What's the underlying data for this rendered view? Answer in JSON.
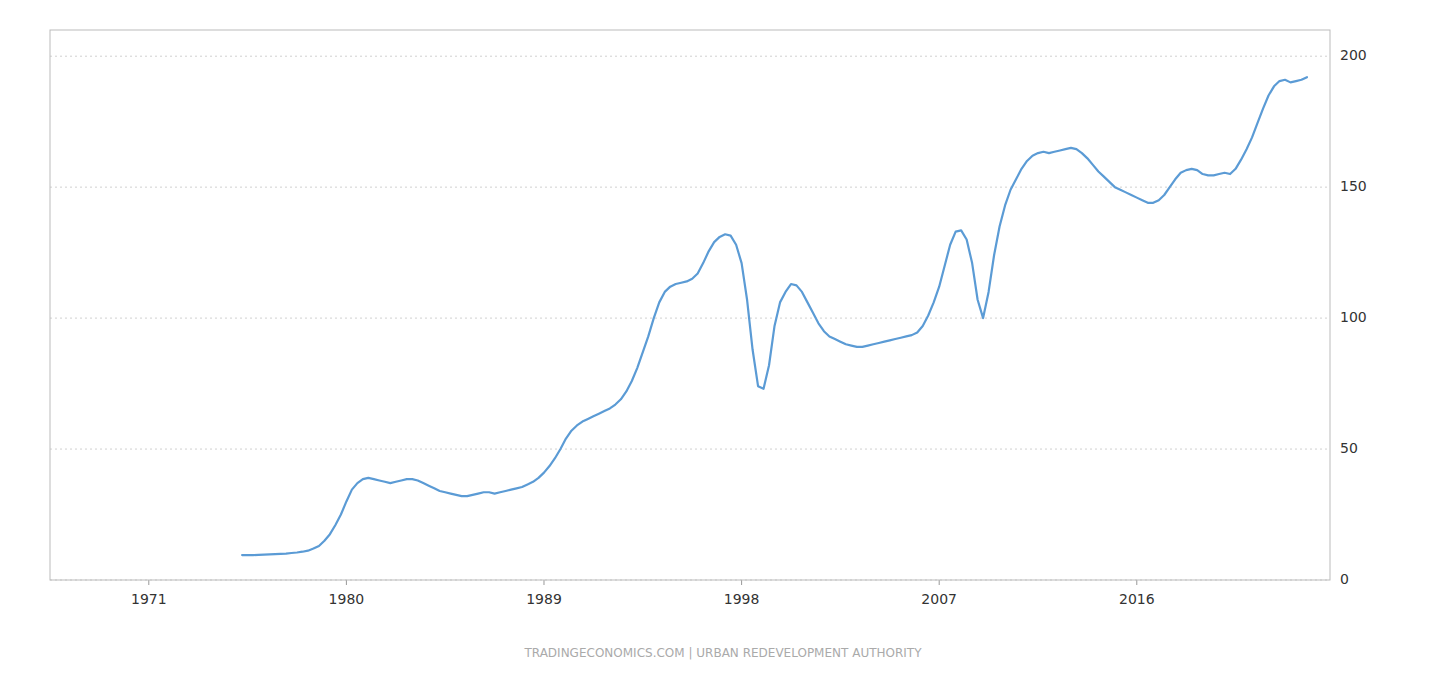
{
  "chart_data": {
    "type": "line",
    "color": "#5b9bd5",
    "grid": true,
    "annotations": [
      "TRADINGECONOMICS.COM | URBAN REDEVELOPMENT AUTHORITY"
    ],
    "xlim": [
      1966.5,
      2024.8
    ],
    "xticks": [
      1971,
      1980,
      1989,
      1998,
      2007,
      2016
    ],
    "ylim": [
      0,
      210
    ],
    "yticks": [
      0,
      50,
      100,
      150,
      200
    ],
    "x": [
      1975.25,
      1975.5,
      1975.75,
      1976.0,
      1976.25,
      1976.5,
      1976.75,
      1977.0,
      1977.25,
      1977.5,
      1977.75,
      1978.0,
      1978.25,
      1978.5,
      1978.75,
      1979.0,
      1979.25,
      1979.5,
      1979.75,
      1980.0,
      1980.25,
      1980.5,
      1980.75,
      1981.0,
      1981.25,
      1981.5,
      1981.75,
      1982.0,
      1982.25,
      1982.5,
      1982.75,
      1983.0,
      1983.25,
      1983.5,
      1983.75,
      1984.0,
      1984.25,
      1984.5,
      1984.75,
      1985.0,
      1985.25,
      1985.5,
      1985.75,
      1986.0,
      1986.25,
      1986.5,
      1986.75,
      1987.0,
      1987.25,
      1987.5,
      1987.75,
      1988.0,
      1988.25,
      1988.5,
      1988.75,
      1989.0,
      1989.25,
      1989.5,
      1989.75,
      1990.0,
      1990.25,
      1990.5,
      1990.75,
      1991.0,
      1991.25,
      1991.5,
      1991.75,
      1992.0,
      1992.25,
      1992.5,
      1992.75,
      1993.0,
      1993.25,
      1993.5,
      1993.75,
      1994.0,
      1994.25,
      1994.5,
      1994.75,
      1995.0,
      1995.25,
      1995.5,
      1995.75,
      1996.0,
      1996.25,
      1996.5,
      1996.75,
      1997.0,
      1997.25,
      1997.5,
      1997.75,
      1998.0,
      1998.25,
      1998.5,
      1998.75,
      1999.0,
      1999.25,
      1999.5,
      1999.75,
      2000.0,
      2000.25,
      2000.5,
      2000.75,
      2001.0,
      2001.25,
      2001.5,
      2001.75,
      2002.0,
      2002.25,
      2002.5,
      2002.75,
      2003.0,
      2003.25,
      2003.5,
      2003.75,
      2004.0,
      2004.25,
      2004.5,
      2004.75,
      2005.0,
      2005.25,
      2005.5,
      2005.75,
      2006.0,
      2006.25,
      2006.5,
      2006.75,
      2007.0,
      2007.25,
      2007.5,
      2007.75,
      2008.0,
      2008.25,
      2008.5,
      2008.75,
      2009.0,
      2009.25,
      2009.5,
      2009.75,
      2010.0,
      2010.25,
      2010.5,
      2010.75,
      2011.0,
      2011.25,
      2011.5,
      2011.75,
      2012.0,
      2012.25,
      2012.5,
      2012.75,
      2013.0,
      2013.25,
      2013.5,
      2013.75,
      2014.0,
      2014.25,
      2014.5,
      2014.75,
      2015.0,
      2015.25,
      2015.5,
      2015.75,
      2016.0,
      2016.25,
      2016.5,
      2016.75,
      2017.0,
      2017.25,
      2017.5,
      2017.75,
      2018.0,
      2018.25,
      2018.5,
      2018.75,
      2019.0,
      2019.25,
      2019.5,
      2019.75,
      2020.0,
      2020.25,
      2020.5,
      2020.75,
      2021.0,
      2021.25,
      2021.5,
      2021.75,
      2022.0,
      2022.25,
      2022.5,
      2022.75,
      2023.0,
      2023.25,
      2023.5,
      2023.75
    ],
    "values": [
      9.5,
      9.5,
      9.5,
      9.6,
      9.7,
      9.8,
      9.9,
      10.0,
      10.1,
      10.3,
      10.5,
      10.8,
      11.2,
      12.0,
      13.0,
      15.0,
      17.5,
      21.0,
      25.0,
      30.0,
      34.5,
      37.0,
      38.5,
      39.0,
      38.5,
      38.0,
      37.5,
      37.0,
      37.5,
      38.0,
      38.5,
      38.5,
      38.0,
      37.0,
      36.0,
      35.0,
      34.0,
      33.5,
      33.0,
      32.5,
      32.0,
      32.0,
      32.5,
      33.0,
      33.5,
      33.5,
      33.0,
      33.5,
      34.0,
      34.5,
      35.0,
      35.5,
      36.5,
      37.5,
      39.0,
      41.0,
      43.5,
      46.5,
      50.0,
      54.0,
      57.0,
      59.0,
      60.5,
      61.5,
      62.5,
      63.5,
      64.5,
      65.5,
      67.0,
      69.0,
      72.0,
      76.0,
      81.0,
      87.0,
      93.0,
      100.0,
      106.0,
      110.0,
      112.0,
      113.0,
      113.5,
      114.0,
      115.0,
      117.0,
      121.0,
      125.5,
      129.0,
      131.0,
      132.0,
      131.5,
      128.0,
      121.0,
      107.0,
      88.0,
      74.0,
      73.0,
      82.0,
      97.0,
      106.0,
      110.0,
      113.0,
      112.5,
      110.0,
      106.0,
      102.0,
      98.0,
      95.0,
      93.0,
      92.0,
      91.0,
      90.0,
      89.5,
      89.0,
      89.0,
      89.5,
      90.0,
      90.5,
      91.0,
      91.5,
      92.0,
      92.5,
      93.0,
      93.5,
      94.5,
      97.0,
      101.0,
      106.0,
      112.0,
      120.0,
      128.0,
      133.0,
      133.5,
      130.0,
      121.0,
      107.0,
      100.0,
      110.0,
      124.0,
      135.0,
      143.0,
      149.0,
      153.0,
      157.0,
      160.0,
      162.0,
      163.0,
      163.5,
      163.0,
      163.5,
      164.0,
      164.5,
      165.0,
      164.5,
      163.0,
      161.0,
      158.5,
      156.0,
      154.0,
      152.0,
      150.0,
      149.0,
      148.0,
      147.0,
      146.0,
      145.0,
      144.0,
      144.0,
      145.0,
      147.0,
      150.0,
      153.0,
      155.5,
      156.5,
      157.0,
      156.5,
      155.0,
      154.5,
      154.5,
      155.0,
      155.5,
      155.0,
      157.0,
      160.5,
      164.5,
      169.0,
      174.5,
      180.0,
      185.0,
      188.5,
      190.5,
      191.0,
      190.0,
      190.5,
      191.0,
      192.0
    ]
  }
}
